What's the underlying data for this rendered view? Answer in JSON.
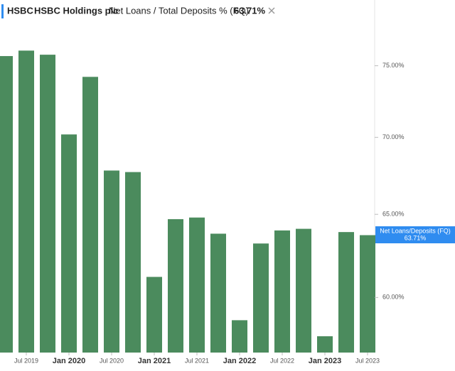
{
  "chart_data": {
    "type": "bar",
    "ticker": "HSBC",
    "company": "HSBC Holdings plc",
    "title": "Net Loans / Total Deposits % (FQ)",
    "categories": [
      null,
      "Jul 2019",
      null,
      "Jan 2020",
      null,
      "Jul 2020",
      null,
      "Jan 2021",
      null,
      "Jul 2021",
      null,
      "Jan 2022",
      null,
      "Jul 2022",
      null,
      "Jan 2023",
      null,
      "Jul 2023"
    ],
    "series": [
      {
        "name": "Net Loans/Deposits (FQ)",
        "color": "#4b8b5d",
        "values": [
          75.7,
          76.1,
          75.8,
          70.2,
          74.2,
          67.8,
          67.7,
          61.2,
          64.7,
          64.8,
          63.8,
          58.7,
          63.2,
          64.0,
          64.1,
          57.8,
          63.9,
          63.71
        ],
        "value_labels": [
          null,
          null,
          null,
          null,
          null,
          null,
          null,
          null,
          null,
          null,
          null,
          null,
          null,
          null,
          null,
          null,
          null,
          "63.71%"
        ]
      }
    ],
    "ylim": [
      56.9,
      79.9
    ],
    "log_scale": true,
    "yticks": [
      {
        "value": 60,
        "label": "60.00%"
      },
      {
        "value": 65,
        "label": "65.00%"
      },
      {
        "value": 70,
        "label": "70.00%"
      },
      {
        "value": 75,
        "label": "75.00%"
      }
    ],
    "grid": false
  }
}
